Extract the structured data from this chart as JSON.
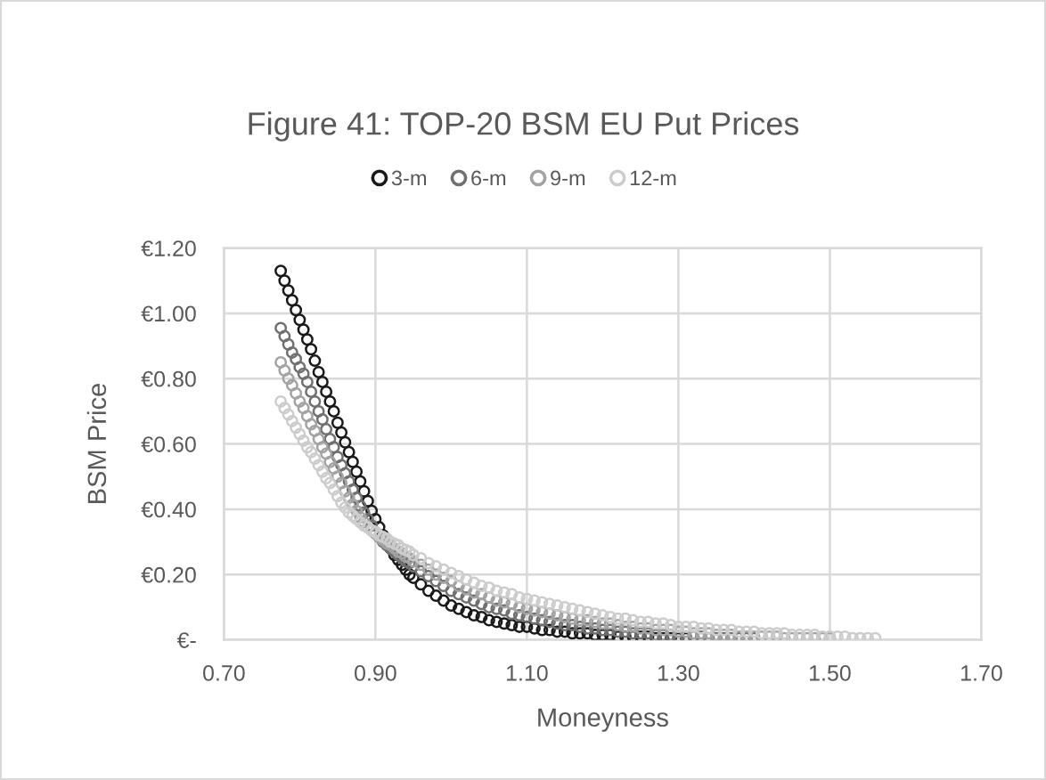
{
  "chart_data": {
    "type": "scatter",
    "title": "Figure 41: TOP-20 BSM EU Put Prices",
    "xlabel": "Moneyness",
    "ylabel": "BSM Price",
    "x": [
      0.775,
      0.78,
      0.785,
      0.79,
      0.795,
      0.8,
      0.805,
      0.81,
      0.815,
      0.82,
      0.825,
      0.83,
      0.835,
      0.84,
      0.845,
      0.85,
      0.855,
      0.86,
      0.865,
      0.87,
      0.875,
      0.88,
      0.885,
      0.89,
      0.895,
      0.9,
      0.905,
      0.91,
      0.915,
      0.92,
      0.925,
      0.93,
      0.935,
      0.94,
      0.945,
      0.95,
      0.96,
      0.97,
      0.98,
      0.99,
      1.0,
      1.01,
      1.02,
      1.03,
      1.04,
      1.05,
      1.06,
      1.07,
      1.08,
      1.09,
      1.1,
      1.11,
      1.12,
      1.13,
      1.14,
      1.15,
      1.16,
      1.17,
      1.18,
      1.19,
      1.2,
      1.21,
      1.22,
      1.23,
      1.24,
      1.25,
      1.26,
      1.27,
      1.28,
      1.29,
      1.3,
      1.31,
      1.32,
      1.33,
      1.34,
      1.35,
      1.36,
      1.37,
      1.38,
      1.39,
      1.4,
      1.41,
      1.42,
      1.43,
      1.44,
      1.45,
      1.46,
      1.47,
      1.48,
      1.49,
      1.5,
      1.51,
      1.52,
      1.53,
      1.54,
      1.55,
      1.56
    ],
    "series": [
      {
        "name": "3-m",
        "color": "#1a1a1a",
        "values": [
          1.13,
          1.1,
          1.07,
          1.04,
          1.01,
          0.98,
          0.95,
          0.92,
          0.89,
          0.855,
          0.82,
          0.79,
          0.76,
          0.73,
          0.7,
          0.665,
          0.635,
          0.605,
          0.575,
          0.545,
          0.515,
          0.485,
          0.455,
          0.425,
          0.395,
          0.37,
          0.345,
          0.32,
          null,
          0.28,
          0.26,
          0.245,
          0.23,
          0.215,
          0.2,
          0.19,
          0.17,
          0.15,
          0.135,
          0.12,
          0.105,
          0.095,
          0.085,
          0.075,
          0.07,
          0.06,
          0.055,
          0.05,
          0.045,
          0.04,
          0.04,
          0.035,
          0.03,
          0.03,
          0.025,
          0.025,
          0.02,
          0.02,
          0.02,
          0.015,
          0.015,
          0.015,
          0.01,
          0.01,
          0.01,
          0.01,
          0.01,
          0.005,
          0.005,
          0.005,
          0.005,
          0.005,
          null,
          null,
          null,
          null,
          null,
          null,
          null,
          null,
          null,
          null,
          null,
          null,
          null,
          null,
          null,
          null,
          null,
          null,
          null,
          null,
          null,
          null,
          null,
          null,
          null
        ]
      },
      {
        "name": "6-m",
        "color": "#707070",
        "values": [
          0.955,
          0.93,
          0.905,
          0.88,
          0.86,
          0.835,
          0.815,
          0.79,
          0.76,
          0.73,
          0.7,
          0.675,
          0.645,
          0.615,
          0.59,
          0.56,
          0.535,
          0.51,
          0.485,
          0.46,
          0.435,
          0.41,
          0.39,
          0.37,
          0.35,
          0.33,
          0.315,
          0.3,
          0.29,
          0.28,
          0.27,
          0.26,
          0.25,
          0.24,
          0.235,
          0.225,
          0.21,
          0.195,
          0.18,
          0.165,
          0.15,
          0.14,
          0.13,
          0.12,
          0.11,
          0.1,
          0.095,
          0.09,
          0.08,
          0.075,
          0.07,
          0.065,
          0.06,
          0.055,
          0.05,
          0.045,
          0.045,
          0.04,
          0.035,
          0.035,
          0.03,
          0.03,
          0.025,
          0.025,
          0.02,
          0.02,
          0.02,
          0.015,
          0.015,
          0.015,
          0.01,
          0.01,
          0.01,
          0.01,
          0.005,
          0.005,
          0.005,
          0.005,
          0.005,
          0.005,
          0.005,
          null,
          null,
          null,
          null,
          null,
          null,
          null,
          null,
          null,
          null,
          null,
          null,
          null,
          null,
          null,
          null
        ]
      },
      {
        "name": "9-m",
        "color": "#a3a3a3",
        "values": [
          0.85,
          0.825,
          0.8,
          0.78,
          0.755,
          0.73,
          0.71,
          0.685,
          0.66,
          0.64,
          0.615,
          0.59,
          0.57,
          0.545,
          0.525,
          0.5,
          0.48,
          0.455,
          0.435,
          0.415,
          0.395,
          0.375,
          0.36,
          0.345,
          0.335,
          0.325,
          0.315,
          0.305,
          0.295,
          0.29,
          0.28,
          0.27,
          0.265,
          0.255,
          0.25,
          0.24,
          0.23,
          0.215,
          0.2,
          0.19,
          0.18,
          0.165,
          0.155,
          0.145,
          0.14,
          0.13,
          0.12,
          0.115,
          0.11,
          0.1,
          0.095,
          0.09,
          0.085,
          0.08,
          0.075,
          0.07,
          0.065,
          0.06,
          0.06,
          0.055,
          0.05,
          0.05,
          0.045,
          0.04,
          0.04,
          0.035,
          0.035,
          0.03,
          0.03,
          0.03,
          0.025,
          0.025,
          0.02,
          0.02,
          0.02,
          0.015,
          0.015,
          0.015,
          0.01,
          0.01,
          0.01,
          0.01,
          0.01,
          0.01,
          0.005,
          0.005,
          0.005,
          0.005,
          0.005,
          0.005,
          0.005,
          null,
          null,
          null,
          null,
          null,
          null
        ]
      },
      {
        "name": "12-m",
        "color": "#cccccc",
        "values": [
          0.73,
          0.71,
          0.69,
          0.67,
          0.65,
          0.63,
          0.61,
          0.59,
          0.575,
          0.555,
          0.535,
          0.515,
          0.495,
          0.48,
          0.46,
          0.44,
          0.42,
          0.405,
          0.39,
          0.38,
          0.37,
          0.36,
          0.35,
          0.345,
          0.335,
          0.33,
          0.32,
          0.315,
          0.31,
          0.3,
          0.295,
          0.29,
          0.28,
          0.275,
          0.27,
          0.26,
          0.25,
          0.235,
          0.225,
          0.215,
          0.205,
          0.195,
          0.185,
          0.175,
          0.165,
          0.16,
          0.15,
          0.145,
          0.14,
          0.13,
          0.125,
          0.12,
          0.115,
          0.11,
          0.105,
          0.1,
          0.095,
          0.09,
          0.085,
          0.08,
          0.075,
          0.07,
          0.065,
          0.065,
          0.06,
          0.055,
          0.055,
          0.05,
          0.05,
          0.045,
          0.04,
          0.04,
          0.04,
          0.035,
          0.035,
          0.03,
          0.03,
          0.03,
          0.025,
          0.025,
          0.025,
          0.02,
          0.02,
          0.02,
          0.02,
          0.015,
          0.015,
          0.015,
          0.015,
          0.01,
          0.01,
          0.01,
          0.01,
          0.005,
          0.005,
          0.005,
          0.005
        ]
      }
    ],
    "xlim": [
      0.7,
      1.7
    ],
    "ylim": [
      0,
      1.2
    ],
    "xticks": [
      {
        "value": 0.7,
        "label": "0.70"
      },
      {
        "value": 0.9,
        "label": "0.90"
      },
      {
        "value": 1.1,
        "label": "1.10"
      },
      {
        "value": 1.3,
        "label": "1.30"
      },
      {
        "value": 1.5,
        "label": "1.50"
      },
      {
        "value": 1.7,
        "label": "1.70"
      }
    ],
    "yticks": [
      {
        "value": 0,
        "label": "€-"
      },
      {
        "value": 0.2,
        "label": "€0.20"
      },
      {
        "value": 0.4,
        "label": "€0.40"
      },
      {
        "value": 0.6,
        "label": "€0.60"
      },
      {
        "value": 0.8,
        "label": "€0.80"
      },
      {
        "value": 1.0,
        "label": "€1.00"
      },
      {
        "value": 1.2,
        "label": "€1.20"
      }
    ],
    "grid": true,
    "legend": "top",
    "marker": "circle"
  }
}
